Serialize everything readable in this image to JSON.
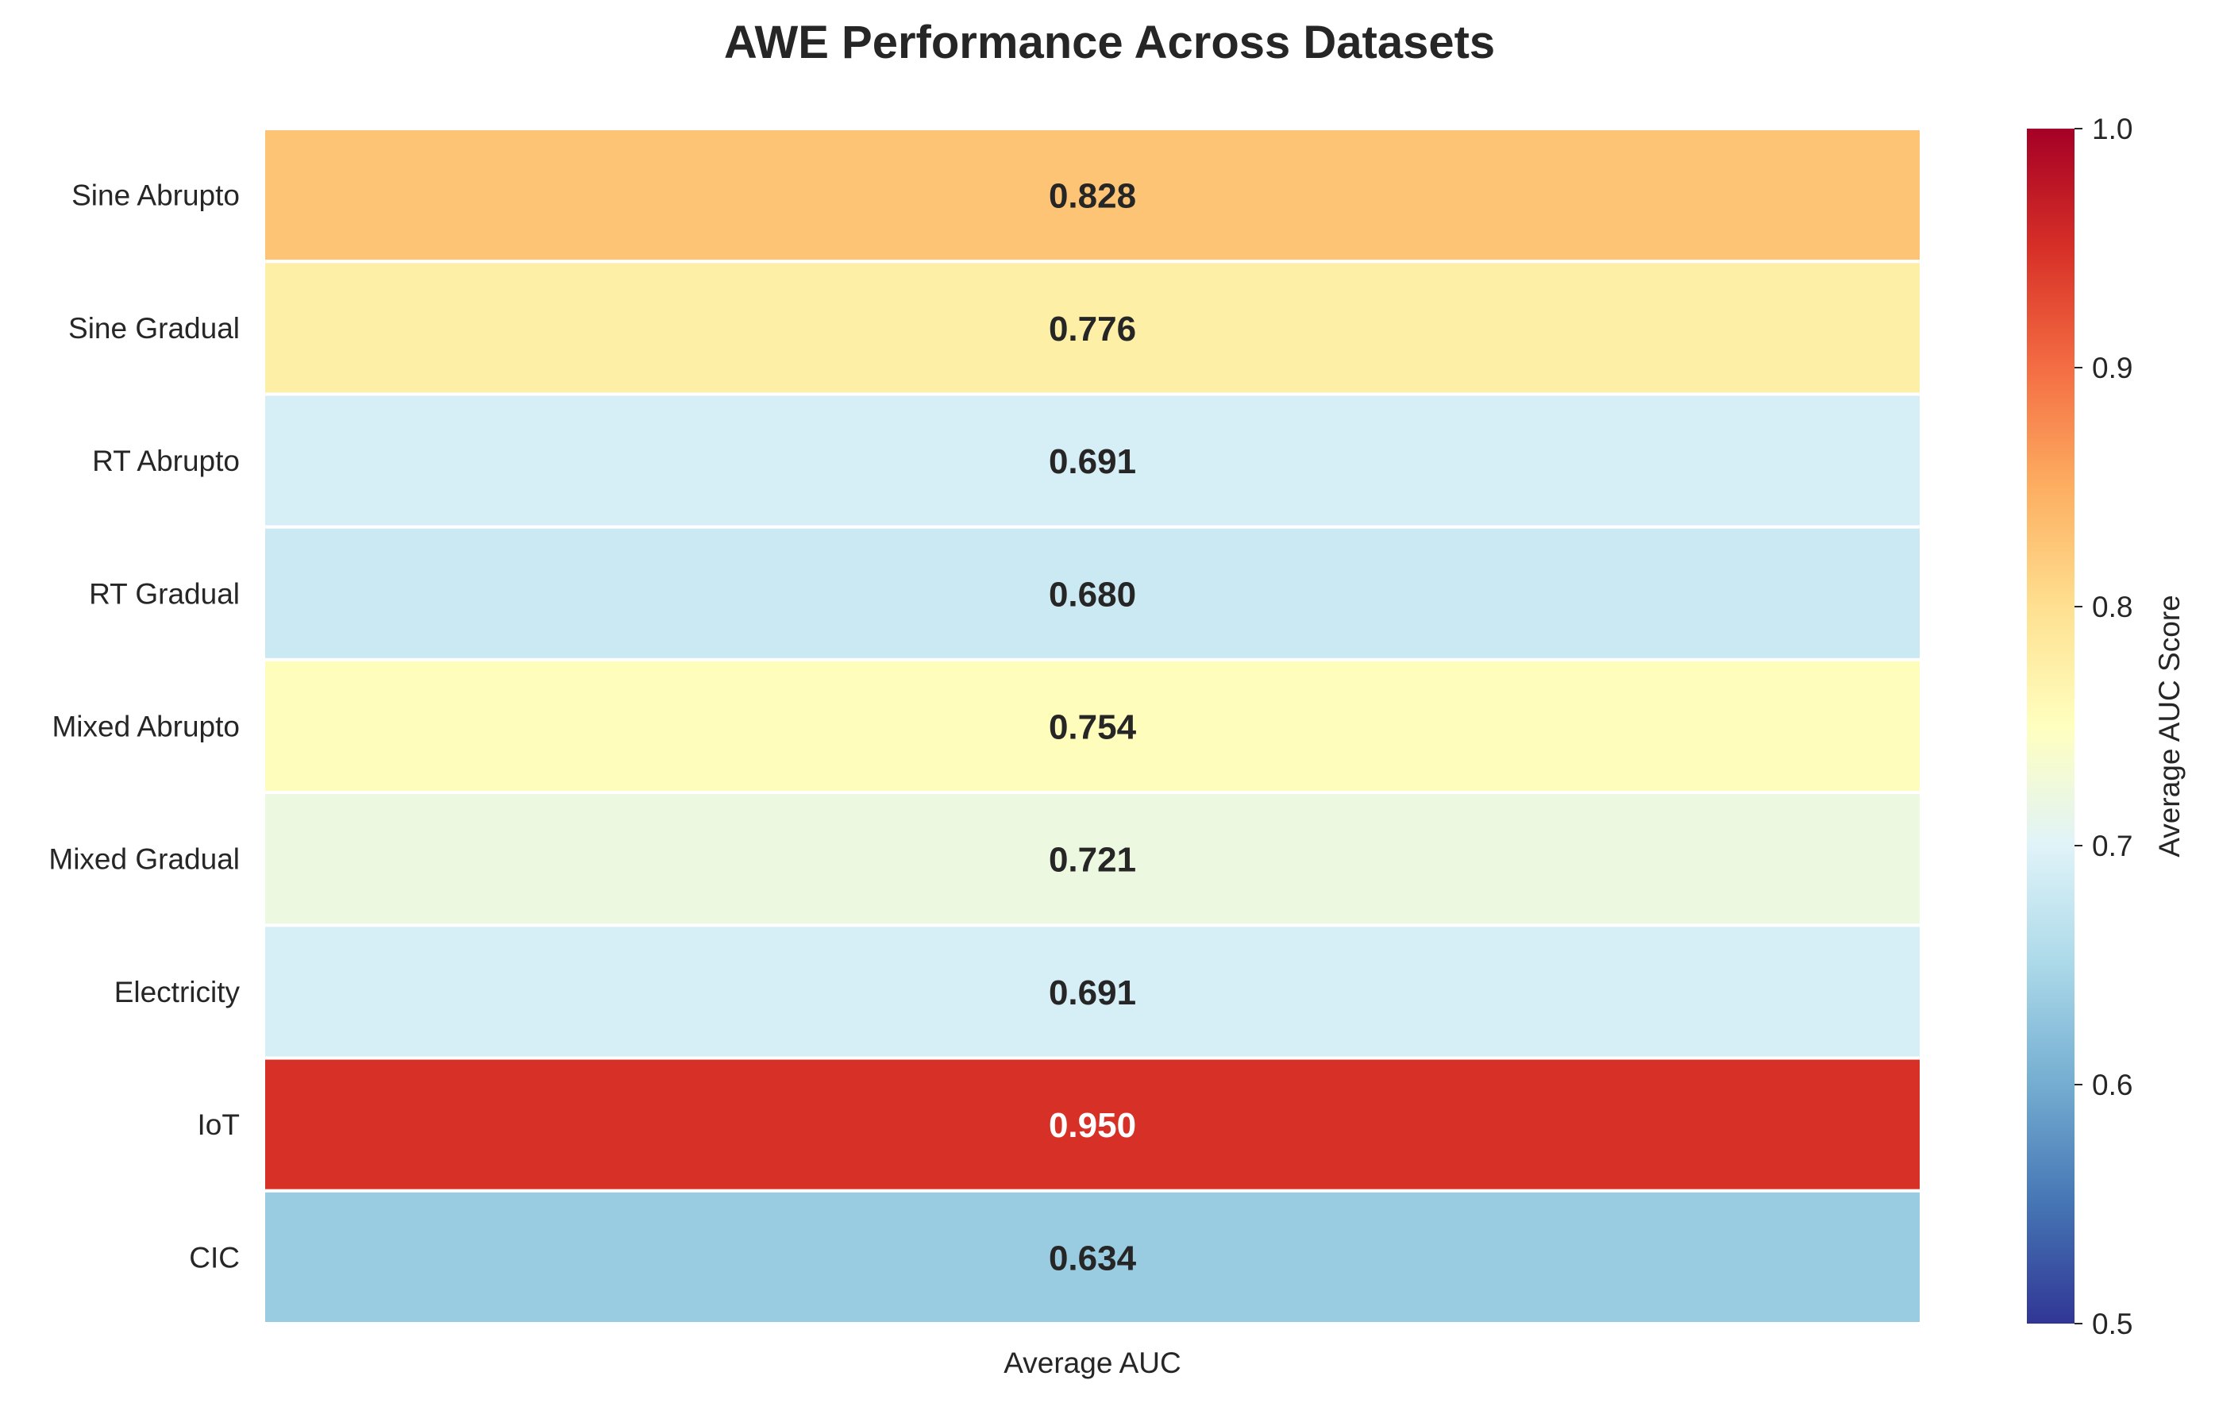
{
  "chart_data": {
    "type": "heatmap",
    "title": "AWE Performance Across Datasets",
    "xlabel": "",
    "ylabel": "",
    "columns": [
      "Average AUC"
    ],
    "rows": [
      "Sine Abrupto",
      "Sine Gradual",
      "RT Abrupto",
      "RT Gradual",
      "Mixed Abrupto",
      "Mixed Gradual",
      "Electricity",
      "IoT",
      "CIC"
    ],
    "values": [
      0.828,
      0.776,
      0.691,
      0.68,
      0.754,
      0.721,
      0.691,
      0.95,
      0.634
    ],
    "value_labels": [
      "0.828",
      "0.776",
      "0.691",
      "0.680",
      "0.754",
      "0.721",
      "0.691",
      "0.950",
      "0.634"
    ],
    "colormap": "RdYlBu_r",
    "vmin": 0.5,
    "vmax": 1.0,
    "colorbar": {
      "label": "Average AUC Score",
      "ticks": [
        0.5,
        0.6,
        0.7,
        0.8,
        0.9,
        1.0
      ],
      "tick_labels": [
        "0.5",
        "0.6",
        "0.7",
        "0.8",
        "0.9",
        "1.0"
      ]
    },
    "colors": {
      "text_dark": "#262626",
      "text_light": "#ffffff",
      "cell_border": "#ffffff"
    }
  }
}
